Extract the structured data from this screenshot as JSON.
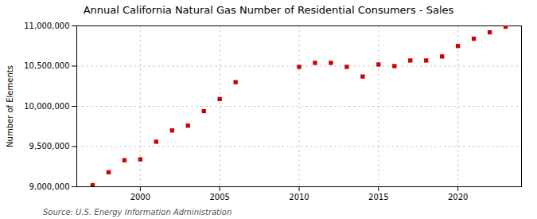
{
  "chart_data": {
    "type": "scatter",
    "title": "Annual California Natural Gas Number of Residential Consumers - Sales",
    "ylabel": "Number of Elements",
    "source": "Source: U.S. Energy Information Administration",
    "color": "#cc0000",
    "marker": "square",
    "grid": true,
    "x": [
      1997,
      1998,
      1999,
      2000,
      2001,
      2002,
      2003,
      2004,
      2005,
      2006,
      2010,
      2011,
      2012,
      2013,
      2014,
      2015,
      2016,
      2017,
      2018,
      2019,
      2020,
      2021,
      2022,
      2023
    ],
    "values": [
      9020000,
      9180000,
      9330000,
      9340000,
      9560000,
      9700000,
      9760000,
      9940000,
      10090000,
      10300000,
      10490000,
      10540000,
      10540000,
      10490000,
      10370000,
      10520000,
      10500000,
      10570000,
      10570000,
      10620000,
      10750000,
      10840000,
      10920000,
      10990000
    ],
    "xlim": [
      1996,
      2024
    ],
    "xticks": [
      2000,
      2005,
      2010,
      2015,
      2020
    ],
    "ylim": [
      9000000,
      11000000
    ],
    "yticks": [
      {
        "value": 9000000,
        "label": "9,000,000"
      },
      {
        "value": 9500000,
        "label": "9,500,000"
      },
      {
        "value": 10000000,
        "label": "10,000,000"
      },
      {
        "value": 10500000,
        "label": "10,500,000"
      },
      {
        "value": 11000000,
        "label": "11,000,000"
      }
    ]
  }
}
